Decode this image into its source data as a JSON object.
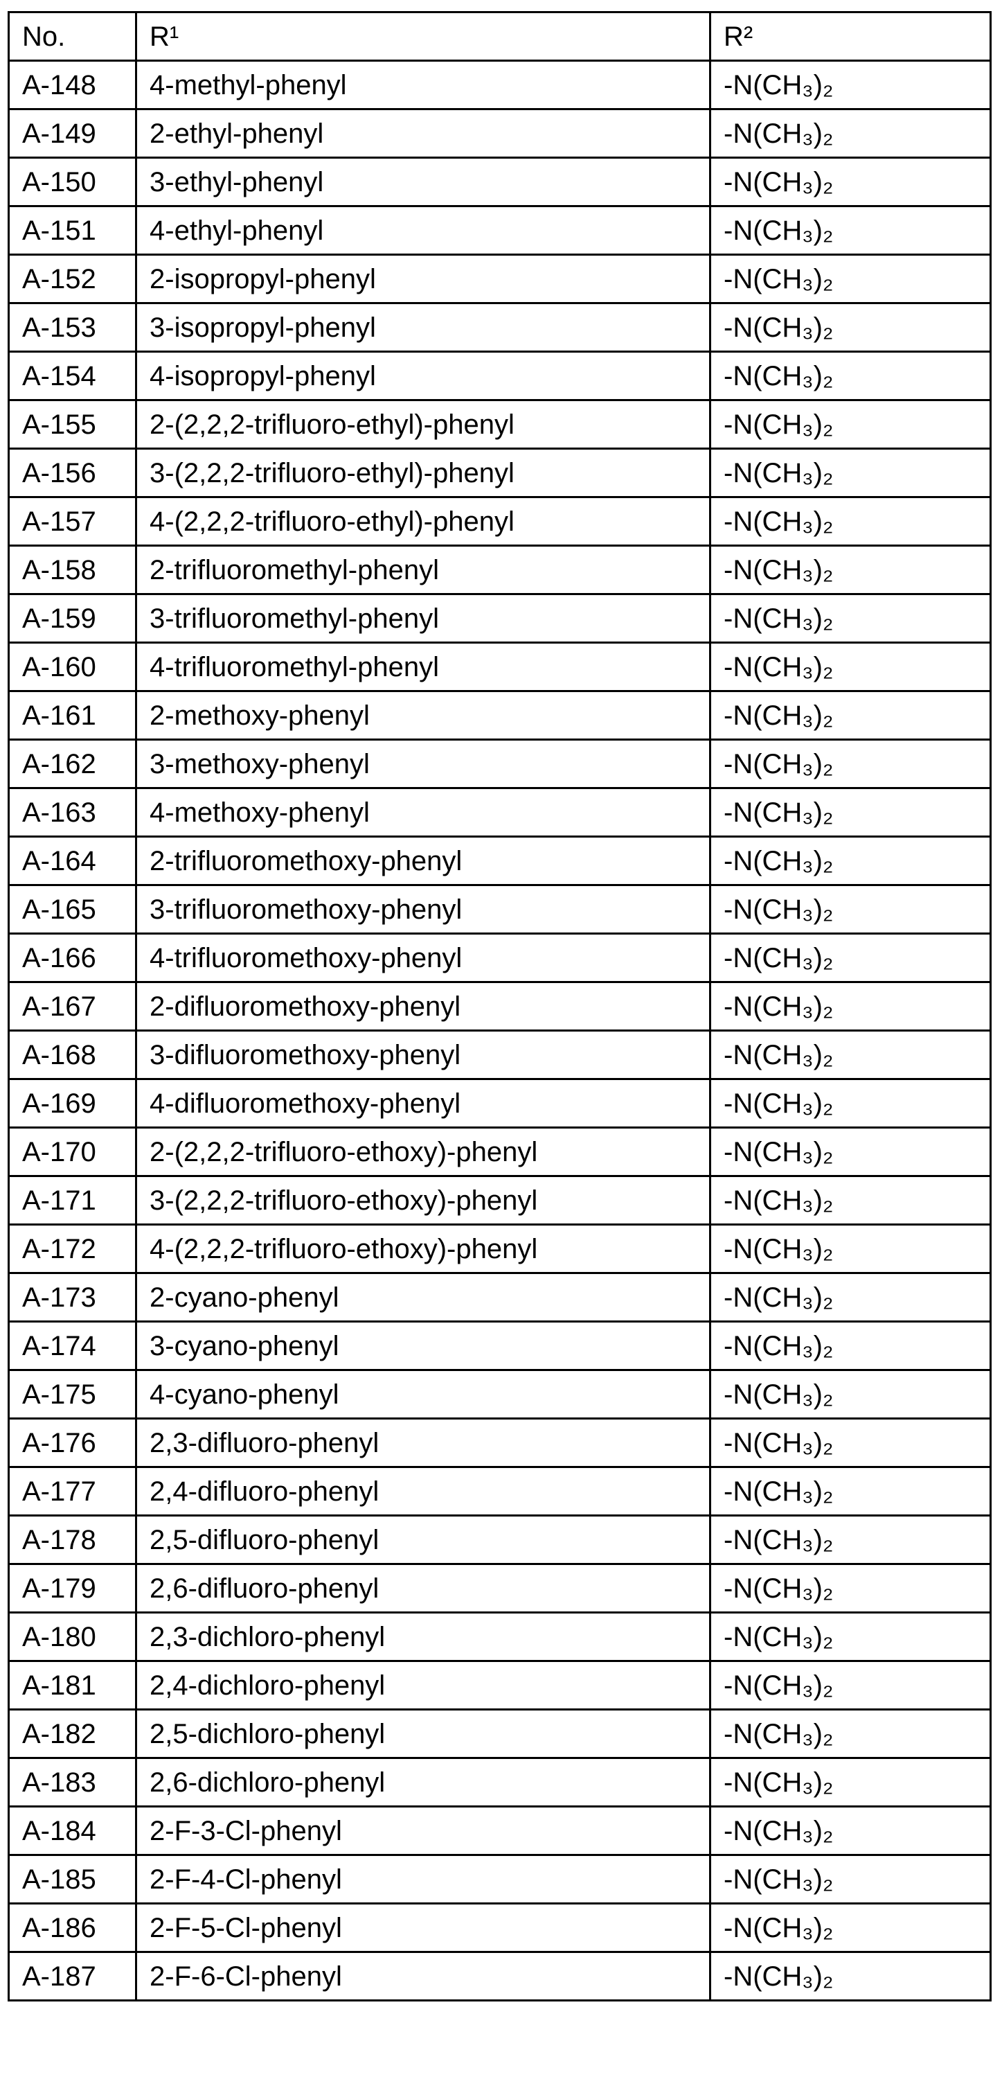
{
  "table": {
    "headers": [
      "No.",
      "R¹",
      "R²"
    ],
    "rows": [
      [
        "A-148",
        "4-methyl-phenyl",
        "-N(CH₃)₂"
      ],
      [
        "A-149",
        "2-ethyl-phenyl",
        "-N(CH₃)₂"
      ],
      [
        "A-150",
        "3-ethyl-phenyl",
        "-N(CH₃)₂"
      ],
      [
        "A-151",
        "4-ethyl-phenyl",
        "-N(CH₃)₂"
      ],
      [
        "A-152",
        "2-isopropyl-phenyl",
        "-N(CH₃)₂"
      ],
      [
        "A-153",
        "3-isopropyl-phenyl",
        "-N(CH₃)₂"
      ],
      [
        "A-154",
        "4-isopropyl-phenyl",
        "-N(CH₃)₂"
      ],
      [
        "A-155",
        "2-(2,2,2-trifluoro-ethyl)-phenyl",
        "-N(CH₃)₂"
      ],
      [
        "A-156",
        "3-(2,2,2-trifluoro-ethyl)-phenyl",
        "-N(CH₃)₂"
      ],
      [
        "A-157",
        "4-(2,2,2-trifluoro-ethyl)-phenyl",
        "-N(CH₃)₂"
      ],
      [
        "A-158",
        "2-trifluoromethyl-phenyl",
        "-N(CH₃)₂"
      ],
      [
        "A-159",
        "3-trifluoromethyl-phenyl",
        "-N(CH₃)₂"
      ],
      [
        "A-160",
        "4-trifluoromethyl-phenyl",
        "-N(CH₃)₂"
      ],
      [
        "A-161",
        "2-methoxy-phenyl",
        "-N(CH₃)₂"
      ],
      [
        "A-162",
        "3-methoxy-phenyl",
        "-N(CH₃)₂"
      ],
      [
        "A-163",
        "4-methoxy-phenyl",
        "-N(CH₃)₂"
      ],
      [
        "A-164",
        "2-trifluoromethoxy-phenyl",
        "-N(CH₃)₂"
      ],
      [
        "A-165",
        "3-trifluoromethoxy-phenyl",
        "-N(CH₃)₂"
      ],
      [
        "A-166",
        "4-trifluoromethoxy-phenyl",
        "-N(CH₃)₂"
      ],
      [
        "A-167",
        "2-difluoromethoxy-phenyl",
        "-N(CH₃)₂"
      ],
      [
        "A-168",
        "3-difluoromethoxy-phenyl",
        "-N(CH₃)₂"
      ],
      [
        "A-169",
        "4-difluoromethoxy-phenyl",
        "-N(CH₃)₂"
      ],
      [
        "A-170",
        "2-(2,2,2-trifluoro-ethoxy)-phenyl",
        "-N(CH₃)₂"
      ],
      [
        "A-171",
        "3-(2,2,2-trifluoro-ethoxy)-phenyl",
        "-N(CH₃)₂"
      ],
      [
        "A-172",
        "4-(2,2,2-trifluoro-ethoxy)-phenyl",
        "-N(CH₃)₂"
      ],
      [
        "A-173",
        "2-cyano-phenyl",
        "-N(CH₃)₂"
      ],
      [
        "A-174",
        "3-cyano-phenyl",
        "-N(CH₃)₂"
      ],
      [
        "A-175",
        "4-cyano-phenyl",
        "-N(CH₃)₂"
      ],
      [
        "A-176",
        "2,3-difluoro-phenyl",
        "-N(CH₃)₂"
      ],
      [
        "A-177",
        "2,4-difluoro-phenyl",
        "-N(CH₃)₂"
      ],
      [
        "A-178",
        "2,5-difluoro-phenyl",
        "-N(CH₃)₂"
      ],
      [
        "A-179",
        "2,6-difluoro-phenyl",
        "-N(CH₃)₂"
      ],
      [
        "A-180",
        "2,3-dichloro-phenyl",
        "-N(CH₃)₂"
      ],
      [
        "A-181",
        "2,4-dichloro-phenyl",
        "-N(CH₃)₂"
      ],
      [
        "A-182",
        "2,5-dichloro-phenyl",
        "-N(CH₃)₂"
      ],
      [
        "A-183",
        "2,6-dichloro-phenyl",
        "-N(CH₃)₂"
      ],
      [
        "A-184",
        "2-F-3-Cl-phenyl",
        "-N(CH₃)₂"
      ],
      [
        "A-185",
        "2-F-4-Cl-phenyl",
        "-N(CH₃)₂"
      ],
      [
        "A-186",
        "2-F-5-Cl-phenyl",
        "-N(CH₃)₂"
      ],
      [
        "A-187",
        "2-F-6-Cl-phenyl",
        "-N(CH₃)₂"
      ]
    ]
  }
}
